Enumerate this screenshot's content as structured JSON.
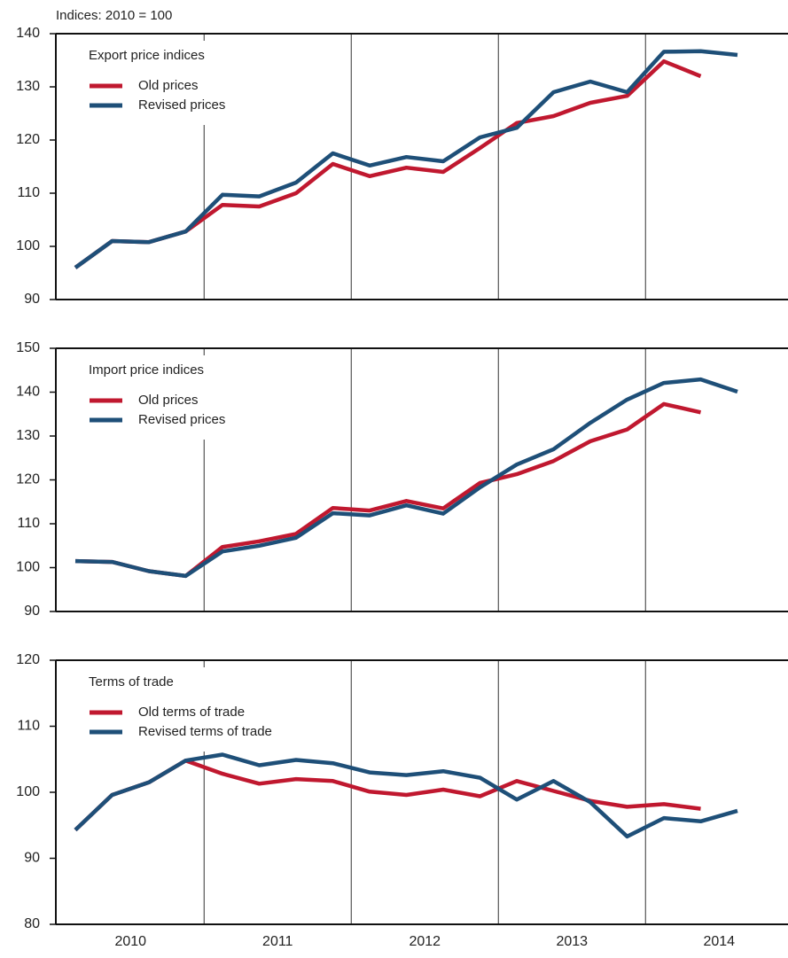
{
  "chart_data": [
    {
      "type": "line",
      "ylabel": "Indices: 2010 = 100",
      "legend_title": "Export price indices",
      "ylim": [
        90,
        140
      ],
      "yticks": [
        90,
        100,
        110,
        120,
        130,
        140
      ],
      "series": [
        {
          "name": "Old prices",
          "color": "#c0182f",
          "values": [
            96,
            101,
            100.8,
            102.8,
            107.8,
            107.5,
            110,
            115.5,
            113.2,
            114.8,
            114,
            118.5,
            123.2,
            124.5,
            127,
            128.3,
            134.8,
            132,
            null
          ]
        },
        {
          "name": "Revised prices",
          "color": "#1e4f78",
          "values": [
            96,
            101,
            100.8,
            102.8,
            109.7,
            109.4,
            112,
            117.5,
            115.2,
            116.8,
            116,
            120.5,
            122.3,
            129,
            131,
            129,
            136.6,
            136.7,
            136
          ]
        }
      ]
    },
    {
      "type": "line",
      "legend_title": "Import price indices",
      "ylim": [
        90,
        150
      ],
      "yticks": [
        90,
        100,
        110,
        120,
        130,
        140,
        150
      ],
      "series": [
        {
          "name": "Old prices",
          "color": "#c0182f",
          "values": [
            101.5,
            101.3,
            99.2,
            98.1,
            104.7,
            106,
            107.7,
            113.6,
            113,
            115.2,
            113.5,
            119.3,
            121.3,
            124.3,
            128.8,
            131.5,
            137.3,
            135.4,
            null
          ]
        },
        {
          "name": "Revised prices",
          "color": "#1e4f78",
          "values": [
            101.5,
            101.3,
            99.2,
            98.1,
            103.7,
            105,
            106.8,
            112.4,
            111.9,
            114.2,
            112.3,
            118.3,
            123.5,
            127,
            133,
            138.3,
            142.1,
            142.9,
            140.1
          ]
        }
      ]
    },
    {
      "type": "line",
      "legend_title": "Terms of trade",
      "categories": [
        "2010",
        null,
        null,
        null,
        "2011",
        null,
        null,
        null,
        "2012",
        null,
        null,
        null,
        "2013",
        null,
        null,
        null,
        "2014",
        null,
        null
      ],
      "ylim": [
        80,
        120
      ],
      "yticks": [
        80,
        90,
        100,
        110,
        120
      ],
      "series": [
        {
          "name": "Old terms of trade",
          "color": "#c0182f",
          "values": [
            94.3,
            99.6,
            101.5,
            104.8,
            102.8,
            101.3,
            102,
            101.7,
            100.1,
            99.6,
            100.4,
            99.4,
            101.7,
            100.2,
            98.7,
            97.8,
            98.2,
            97.5,
            null
          ]
        },
        {
          "name": "Revised terms of trade",
          "color": "#1e4f78",
          "values": [
            94.3,
            99.6,
            101.5,
            104.8,
            105.7,
            104.1,
            104.9,
            104.4,
            103,
            102.6,
            103.2,
            102.2,
            98.9,
            101.7,
            98.5,
            93.3,
            96.1,
            95.6,
            97.2
          ]
        }
      ]
    }
  ]
}
